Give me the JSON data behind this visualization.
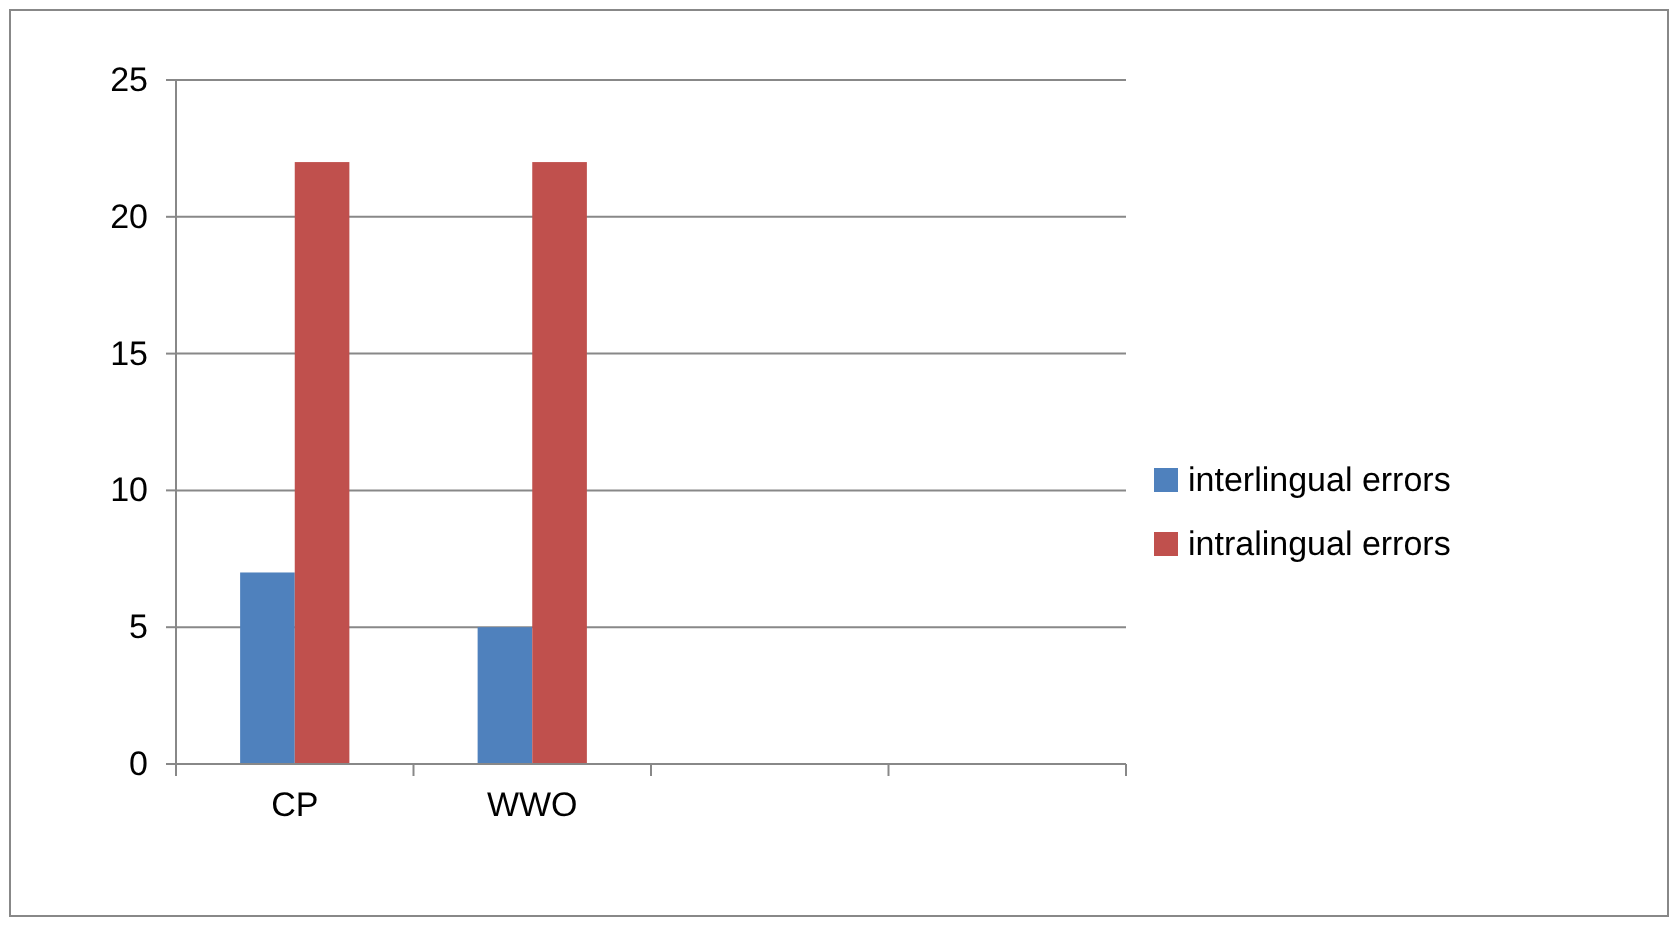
{
  "chart_data": {
    "type": "bar",
    "categories": [
      "CP",
      "WWO",
      null,
      null
    ],
    "series": [
      {
        "name": "interlingual errors",
        "color": "#4f81bd",
        "values": [
          7,
          5,
          null,
          null
        ]
      },
      {
        "name": "intralingual errors",
        "color": "#c0504d",
        "values": [
          22,
          22,
          null,
          null
        ]
      }
    ],
    "ylim": [
      0,
      25
    ],
    "yticks": [
      0,
      5,
      10,
      15,
      20,
      25
    ],
    "grid": "y",
    "legend": "right"
  }
}
